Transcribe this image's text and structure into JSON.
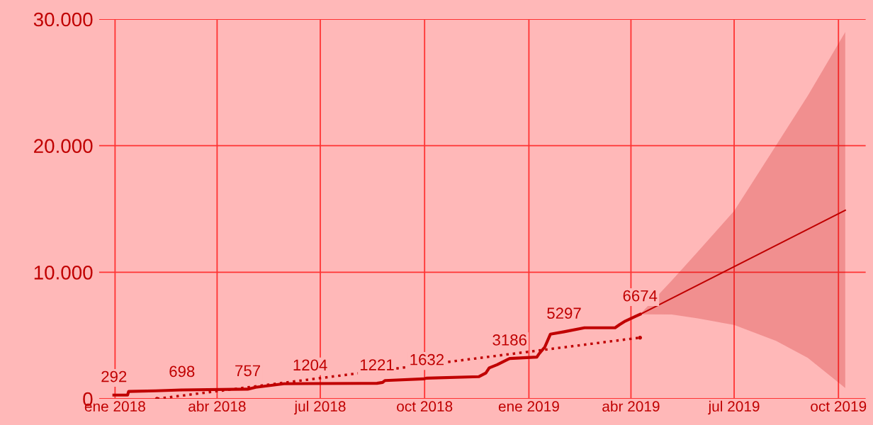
{
  "chart_data": {
    "type": "line",
    "xlim": [
      "2017-12-18",
      "2019-10-25"
    ],
    "xticks": [
      {
        "value": "2018-01-01",
        "label": "ene 2018"
      },
      {
        "value": "2018-04-01",
        "label": "abr 2018"
      },
      {
        "value": "2018-07-01",
        "label": "jul 2018"
      },
      {
        "value": "2018-10-01",
        "label": "oct 2018"
      },
      {
        "value": "2019-01-01",
        "label": "ene 2019"
      },
      {
        "value": "2019-04-01",
        "label": "abr 2019"
      },
      {
        "value": "2019-07-01",
        "label": "jul 2019"
      },
      {
        "value": "2019-10-01",
        "label": "oct 2019"
      }
    ],
    "ylim": [
      0,
      30000
    ],
    "yticks": [
      0,
      {
        "value": 10000,
        "label": "10.000"
      },
      {
        "value": 20000,
        "label": "20.000"
      },
      {
        "value": 30000,
        "label": "30.000"
      }
    ],
    "grid": true,
    "series": [
      {
        "color": "#c00000",
        "marker": "none",
        "line_style": "solid",
        "x": [
          "2017-12-31",
          "2018-01-12",
          "2018-01-13",
          "2018-02-06",
          "2018-03-01",
          "2018-04-28",
          "2018-05-05",
          "2018-05-30",
          "2018-06-22",
          "2018-08-20",
          "2018-08-25",
          "2018-08-27",
          "2018-09-30",
          "2018-10-03",
          "2018-11-18",
          "2018-11-24",
          "2018-11-27",
          "2018-12-04",
          "2018-12-15",
          "2019-01-08",
          "2019-01-10",
          "2019-01-15",
          "2019-01-20",
          "2019-02-01",
          "2019-02-19",
          "2019-03-18",
          "2019-03-22",
          "2019-03-27",
          "2019-04-05",
          "2019-04-09"
        ],
        "values": [
          292,
          292,
          580,
          630,
          698,
          757,
          910,
          1190,
          1204,
          1221,
          1290,
          1440,
          1570,
          1632,
          1750,
          2030,
          2440,
          2690,
          3186,
          3290,
          3560,
          4085,
          5110,
          5297,
          5610,
          5610,
          5860,
          6140,
          6510,
          6674
        ],
        "value_labels": [
          "292",
          null,
          null,
          null,
          "698",
          "757",
          null,
          null,
          "1204",
          "1221",
          null,
          null,
          null,
          "1632",
          null,
          null,
          null,
          null,
          "3186",
          null,
          null,
          null,
          null,
          "5297",
          null,
          null,
          null,
          null,
          null,
          "6674"
        ]
      },
      {
        "color": "#c00000",
        "marker": "circle",
        "line_style": "dotted",
        "x": [
          "2018-02-07",
          "2019-04-09"
        ],
        "values": [
          0,
          4830
        ]
      },
      {
        "color": "#c00000",
        "marker": "none",
        "line_style": "solid",
        "x": [
          "2019-04-09",
          "2019-05-07",
          "2019-05-30",
          "2019-07-01",
          "2019-08-07",
          "2019-09-04",
          "2019-10-07"
        ],
        "values": [
          6670,
          null,
          null,
          null,
          null,
          null,
          14900
        ],
        "lower": [
          6674,
          6660,
          6350,
          5830,
          4580,
          3230,
          850
        ],
        "upper": [
          6674,
          9350,
          11630,
          14840,
          20020,
          23960,
          28980
        ]
      }
    ]
  }
}
